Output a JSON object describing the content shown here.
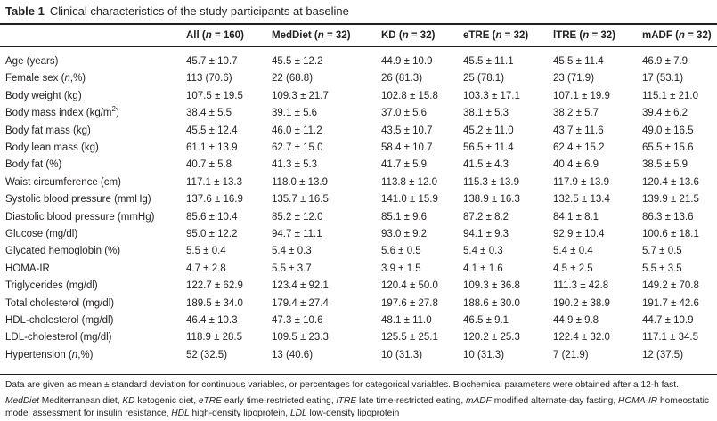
{
  "caption": {
    "label": "Table 1",
    "title": "Clinical characteristics of the study participants at baseline"
  },
  "headers": [
    {
      "name": "All",
      "n": "160"
    },
    {
      "name": "MedDiet",
      "n": "32"
    },
    {
      "name": "KD",
      "n": "32"
    },
    {
      "name": "eTRE",
      "n": "32"
    },
    {
      "name": "lTRE",
      "n": "32"
    },
    {
      "name": "mADF",
      "n": "32"
    }
  ],
  "rows": [
    {
      "label": "Age (years)",
      "values": [
        "45.7 ± 10.7",
        "45.5 ± 12.2",
        "44.9 ± 10.9",
        "45.5 ± 11.1",
        "45.5 ± 11.4",
        "46.9 ± 7.9"
      ]
    },
    {
      "label": "Female sex (n,%)",
      "values": [
        "113 (70.6)",
        "22 (68.8)",
        "26 (81.3)",
        "25 (78.1)",
        "23 (71.9)",
        "17 (53.1)"
      ]
    },
    {
      "label": "Body weight (kg)",
      "values": [
        "107.5 ± 19.5",
        "109.3 ± 21.7",
        "102.8 ± 15.8",
        "103.3 ± 17.1",
        "107.1 ± 19.9",
        "115.1 ± 21.0"
      ]
    },
    {
      "label": "Body mass index (kg/m",
      "label_sup": "2",
      "label_end": ")",
      "values": [
        "38.4 ± 5.5",
        "39.1 ± 5.6",
        "37.0 ± 5.6",
        "38.1 ± 5.3",
        "38.2 ± 5.7",
        "39.4 ± 6.2"
      ]
    },
    {
      "label": "Body fat mass (kg)",
      "values": [
        "45.5 ± 12.4",
        "46.0 ± 11.2",
        "43.5 ± 10.7",
        "45.2 ± 11.0",
        "43.7 ± 11.6",
        "49.0 ± 16.5"
      ]
    },
    {
      "label": "Body lean mass (kg)",
      "values": [
        "61.1 ± 13.9",
        "62.7 ± 15.0",
        "58.4 ± 10.7",
        "56.5 ± 11.4",
        "62.4 ± 15.2",
        "65.5 ± 15.6"
      ]
    },
    {
      "label": "Body fat (%)",
      "values": [
        "40.7 ± 5.8",
        "41.3 ± 5.3",
        "41.7 ± 5.9",
        "41.5 ± 4.3",
        "40.4 ± 6.9",
        "38.5 ± 5.9"
      ]
    },
    {
      "label": "Waist circumference (cm)",
      "values": [
        "117.1 ± 13.3",
        "118.0 ± 13.9",
        "113.8 ± 12.0",
        "115.3 ± 13.9",
        "117.9 ± 13.9",
        "120.4 ± 13.6"
      ]
    },
    {
      "label": "Systolic blood pressure (mmHg)",
      "values": [
        "137.6 ± 16.9",
        "135.7 ± 16.5",
        "141.0 ± 15.9",
        "138.9 ± 16.3",
        "132.5 ± 13.4",
        "139.9 ± 21.5"
      ]
    },
    {
      "label": "Diastolic blood pressure (mmHg)",
      "values": [
        "85.6 ± 10.4",
        "85.2 ± 12.0",
        "85.1 ± 9.6",
        "87.2 ± 8.2",
        "84.1 ± 8.1",
        "86.3 ± 13.6"
      ]
    },
    {
      "label": "Glucose (mg/dl)",
      "values": [
        "95.0 ± 12.2",
        "94.7 ± 11.1",
        "93.0 ± 9.2",
        "94.1 ± 9.3",
        "92.9 ± 10.4",
        "100.6 ± 18.1"
      ]
    },
    {
      "label": "Glycated hemoglobin (%)",
      "values": [
        "5.5 ± 0.4",
        "5.4 ± 0.3",
        "5.6 ± 0.5",
        "5.4 ± 0.3",
        "5.4 ± 0.4",
        "5.7 ± 0.5"
      ]
    },
    {
      "label": "HOMA-IR",
      "values": [
        "4.7 ± 2.8",
        "5.5 ± 3.7",
        "3.9 ± 1.5",
        "4.1 ± 1.6",
        "4.5 ± 2.5",
        "5.5 ± 3.5"
      ]
    },
    {
      "label": "Triglycerides (mg/dl)",
      "values": [
        "122.7 ± 62.9",
        "123.4 ± 92.1",
        "120.4 ± 50.0",
        "109.3 ± 36.8",
        "111.3 ± 42.8",
        "149.2 ± 70.8"
      ]
    },
    {
      "label": "Total cholesterol (mg/dl)",
      "values": [
        "189.5 ± 34.0",
        "179.4 ± 27.4",
        "197.6 ± 27.8",
        "188.6 ± 30.0",
        "190.2 ± 38.9",
        "191.7 ± 42.6"
      ]
    },
    {
      "label": "HDL-cholesterol (mg/dl)",
      "values": [
        "46.4 ± 10.3",
        "47.3 ± 10.6",
        "48.1 ± 11.0",
        "46.5 ± 9.1",
        "44.9 ± 9.8",
        "44.7 ± 10.9"
      ]
    },
    {
      "label": "LDL-cholesterol (mg/dl)",
      "values": [
        "118.9 ± 28.5",
        "109.5 ± 23.3",
        "125.5 ± 25.1",
        "120.2 ± 25.3",
        "122.4 ± 32.0",
        "117.1 ± 34.5"
      ]
    },
    {
      "label": "Hypertension (n,%)",
      "values": [
        "52 (32.5)",
        "13 (40.6)",
        "10 (31.3)",
        "10 (31.3)",
        "7 (21.9)",
        "12 (37.5)"
      ]
    }
  ],
  "footnote_1": "Data are given as mean ± standard deviation for continuous variables, or percentages for categorical variables. Biochemical parameters were obtained after a 12-h fast.",
  "footnote_2": [
    {
      "abbr": "MedDiet",
      "text": "Mediterranean diet,"
    },
    {
      "abbr": "KD",
      "text": "ketogenic diet,"
    },
    {
      "abbr": "eTRE",
      "text": "early time-restricted eating,"
    },
    {
      "abbr": "lTRE",
      "text": "late time-restricted eating,"
    },
    {
      "abbr": "mADF",
      "text": "modified alternate-day fasting,"
    },
    {
      "abbr": "HOMA-IR",
      "text": "homeostatic model assessment for insulin resistance,"
    },
    {
      "abbr": "HDL",
      "text": "high-density lipoprotein,"
    },
    {
      "abbr": "LDL",
      "text": "low-density lipoprotein"
    }
  ]
}
